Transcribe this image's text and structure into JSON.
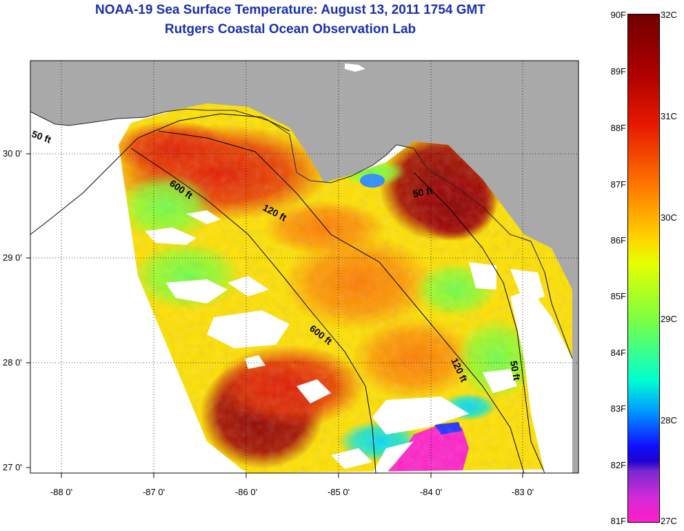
{
  "title": {
    "line1": "NOAA-19 Sea Surface Temperature:  August 13, 2011 1754 GMT",
    "line2": "Rutgers Coastal Ocean Observation Lab"
  },
  "lat_labels": [
    "30 0'",
    "29 0'",
    "28 0'",
    "27 0'"
  ],
  "lon_labels": [
    "-88 0'",
    "-87 0'",
    "-86 0'",
    "-85 0'",
    "-84 0'",
    "-83 0'"
  ],
  "contour_labels": [
    "50 ft",
    "600 ft",
    "120 ft",
    "50 ft",
    "600 ft",
    "120 ft",
    "50 ft"
  ],
  "colorbar": {
    "fahrenheit": [
      "90F",
      "89F",
      "88F",
      "87F",
      "86F",
      "85F",
      "84F",
      "83F",
      "82F",
      "81F"
    ],
    "celsius": [
      "32C",
      "31C",
      "30C",
      "29C",
      "28C",
      "27C"
    ]
  },
  "colors": {
    "land": "#a9a9a9",
    "title": "#1a2fb0",
    "cloud": "#ffffff"
  }
}
